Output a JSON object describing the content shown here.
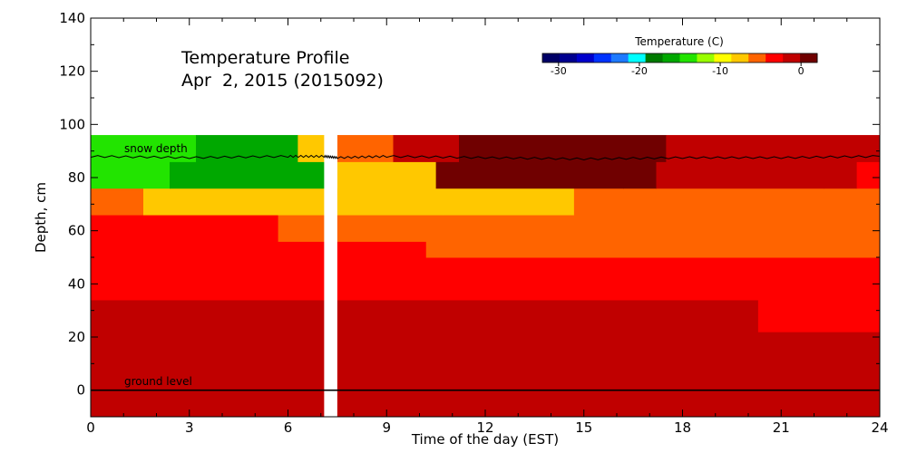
{
  "chart_data": {
    "type": "heatmap",
    "title": "Temperature Profile",
    "subtitle": "Apr  2, 2015 (2015092)",
    "xlabel": "Time of the day (EST)",
    "ylabel": "Depth, cm",
    "xlim": [
      0,
      24
    ],
    "ylim": [
      -10,
      140
    ],
    "xticks": [
      0,
      3,
      6,
      9,
      12,
      15,
      18,
      21,
      24
    ],
    "yticks": [
      0,
      20,
      40,
      60,
      80,
      100,
      120,
      140
    ],
    "grid": false,
    "colorbar": {
      "title": "Temperature (C)",
      "range": [
        -32,
        2
      ],
      "ticks": [
        -30,
        -20,
        -10,
        0
      ],
      "colors": [
        "#000066",
        "#00008f",
        "#0000cc",
        "#0033ff",
        "#1e7aff",
        "#00ffff",
        "#007a00",
        "#00a800",
        "#22e400",
        "#99ff00",
        "#ffff00",
        "#ffc800",
        "#ff6400",
        "#ff0000",
        "#c00000",
        "#700000"
      ]
    },
    "annotations": [
      "snow depth",
      "ground level"
    ],
    "gap": [
      7.1,
      7.5
    ],
    "layers": [
      {
        "depth": [
          -10,
          22
        ],
        "segments": [
          {
            "x": [
              0,
              24
            ],
            "temp": -1
          }
        ]
      },
      {
        "depth": [
          22,
          34
        ],
        "segments": [
          {
            "x": [
              0,
              19.2
            ],
            "temp": -2
          },
          {
            "x": [
              19.2,
              20.3
            ],
            "temp": -2
          },
          {
            "x": [
              20.3,
              24
            ],
            "temp": -3
          }
        ]
      },
      {
        "depth": [
          34,
          42
        ],
        "segments": [
          {
            "x": [
              0,
              24
            ],
            "temp": -3
          }
        ]
      },
      {
        "depth": [
          42,
          50
        ],
        "segments": [
          {
            "x": [
              0,
              10.2
            ],
            "temp": -4
          },
          {
            "x": [
              10.2,
              24
            ],
            "temp": -4
          }
        ]
      },
      {
        "depth": [
          50,
          56
        ],
        "segments": [
          {
            "x": [
              0,
              10.2
            ],
            "temp": -4
          },
          {
            "x": [
              10.2,
              24
            ],
            "temp": -5
          }
        ]
      },
      {
        "depth": [
          56,
          66
        ],
        "segments": [
          {
            "x": [
              0,
              5.7
            ],
            "temp": -4
          },
          {
            "x": [
              5.7,
              24
            ],
            "temp": -5
          }
        ]
      },
      {
        "depth": [
          66,
          76
        ],
        "segments": [
          {
            "x": [
              0,
              1.6
            ],
            "temp": -5
          },
          {
            "x": [
              1.6,
              10.7
            ],
            "temp": -7
          },
          {
            "x": [
              10.7,
              14.7
            ],
            "temp": -7
          },
          {
            "x": [
              14.7,
              24
            ],
            "temp": -5
          }
        ]
      },
      {
        "depth": [
          76,
          86
        ],
        "segments": [
          {
            "x": [
              0,
              2.4
            ],
            "temp": -14
          },
          {
            "x": [
              2.4,
              7.1
            ],
            "temp": -16
          },
          {
            "x": [
              7.5,
              10.5
            ],
            "temp": -8
          },
          {
            "x": [
              10.5,
              16.2
            ],
            "temp": 1
          },
          {
            "x": [
              16.2,
              17.2
            ],
            "temp": 0
          },
          {
            "x": [
              17.2,
              22.3
            ],
            "temp": -1
          },
          {
            "x": [
              22.3,
              23.3
            ],
            "temp": -2
          },
          {
            "x": [
              23.3,
              24
            ],
            "temp": -3
          }
        ]
      },
      {
        "depth": [
          86,
          96
        ],
        "segments": [
          {
            "x": [
              0,
              3.2
            ],
            "temp": -14
          },
          {
            "x": [
              3.2,
              6.3
            ],
            "temp": -16
          },
          {
            "x": [
              6.3,
              7.1
            ],
            "temp": -8
          },
          {
            "x": [
              7.5,
              9.2
            ],
            "temp": -6
          },
          {
            "x": [
              9.2,
              11.2
            ],
            "temp": -2
          },
          {
            "x": [
              11.2,
              17.5
            ],
            "temp": 1
          },
          {
            "x": [
              17.5,
              24
            ],
            "temp": -1
          }
        ]
      }
    ],
    "snow_depth": {
      "x": [
        0,
        3,
        6,
        7.1,
        7.5,
        9,
        12,
        15,
        18,
        21,
        24
      ],
      "y": [
        88,
        87.5,
        88,
        88,
        87.5,
        88,
        87.5,
        87,
        87.5,
        87.5,
        88
      ]
    },
    "ground_level": 0
  }
}
